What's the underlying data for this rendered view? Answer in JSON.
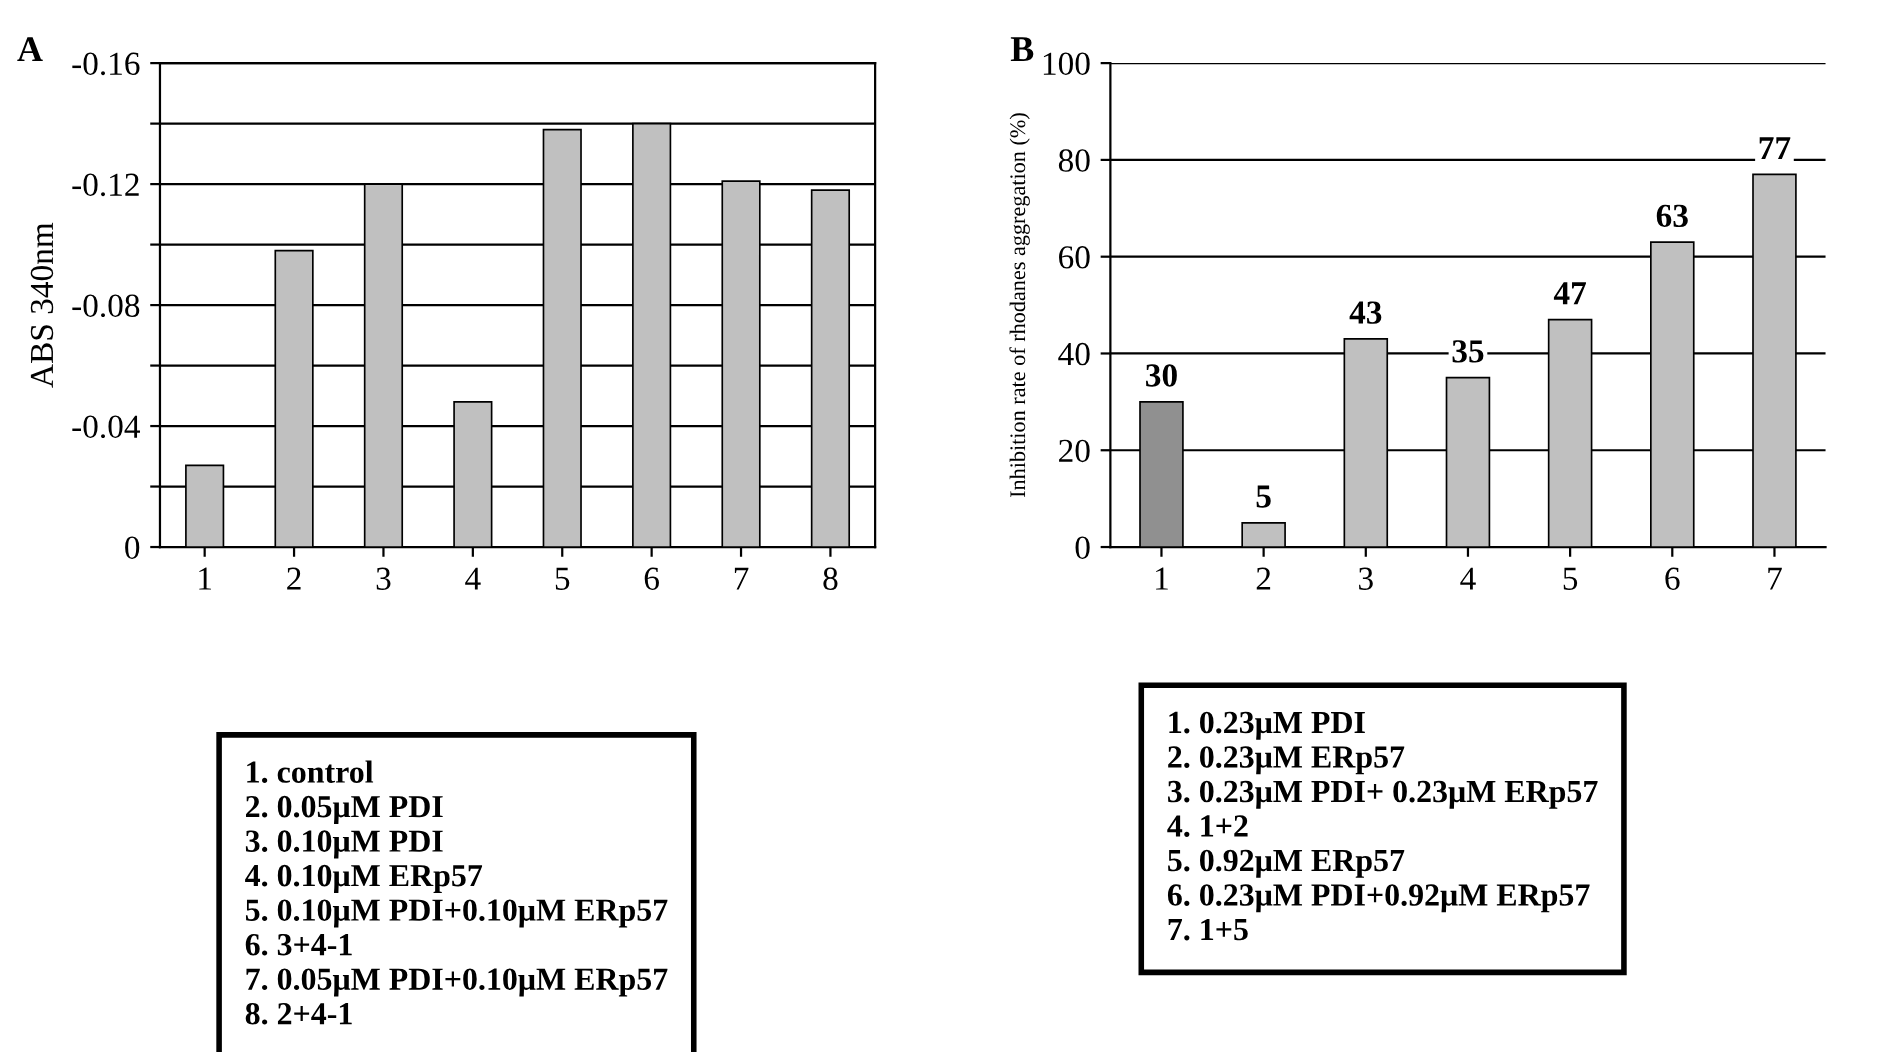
{
  "chart_data": [
    {
      "type": "bar",
      "title": "A",
      "ylabel": "ABS 340nm",
      "categories": [
        "1",
        "2",
        "3",
        "4",
        "5",
        "6",
        "7",
        "8"
      ],
      "series": [
        {
          "color": "#c0c0c0",
          "values": [
            -0.027,
            -0.098,
            -0.12,
            -0.048,
            -0.138,
            -0.14,
            -0.121,
            -0.118
          ]
        }
      ],
      "ylim": [
        0,
        -0.16
      ],
      "yticks": [
        0,
        {
          "value": -0.02,
          "label": null
        },
        -0.04,
        {
          "value": -0.06,
          "label": null
        },
        -0.08,
        {
          "value": -0.1,
          "label": null
        },
        -0.12,
        {
          "value": -0.14,
          "label": null
        },
        -0.16
      ],
      "grid": "y",
      "legend": false,
      "annotations": [
        "1. control",
        "2. 0.05μM PDI",
        "3. 0.10μM PDI",
        "4. 0.10μM ERp57",
        "5. 0.10μM PDI+0.10μM ERp57",
        "6. 3+4-1",
        "7. 0.05μM PDI+0.10μM ERp57",
        "8. 2+4-1"
      ]
    },
    {
      "type": "bar",
      "title": "B",
      "ylabel": "Inhibition rate of rhodanes aggregation (%)",
      "categories": [
        "1",
        "2",
        "3",
        "4",
        "5",
        "6",
        "7"
      ],
      "series": [
        {
          "colors": [
            "#909090",
            "#c0c0c0",
            "#c0c0c0",
            "#c0c0c0",
            "#c0c0c0",
            "#c0c0c0",
            "#c0c0c0"
          ],
          "values": [
            30,
            5,
            43,
            35,
            47,
            63,
            77
          ]
        }
      ],
      "ylim": [
        0,
        100
      ],
      "yticks": [
        0,
        20,
        40,
        60,
        80,
        100
      ],
      "grid": "y",
      "legend": false,
      "data_labels": true,
      "annotations": [
        "1. 0.23μM PDI",
        "2. 0.23μM ERp57",
        "3. 0.23μM PDI+ 0.23μM ERp57",
        "4. 1+2",
        "5. 0.92μM ERp57",
        "6. 0.23μM PDI+0.92μM ERp57",
        "7. 1+5"
      ]
    }
  ]
}
